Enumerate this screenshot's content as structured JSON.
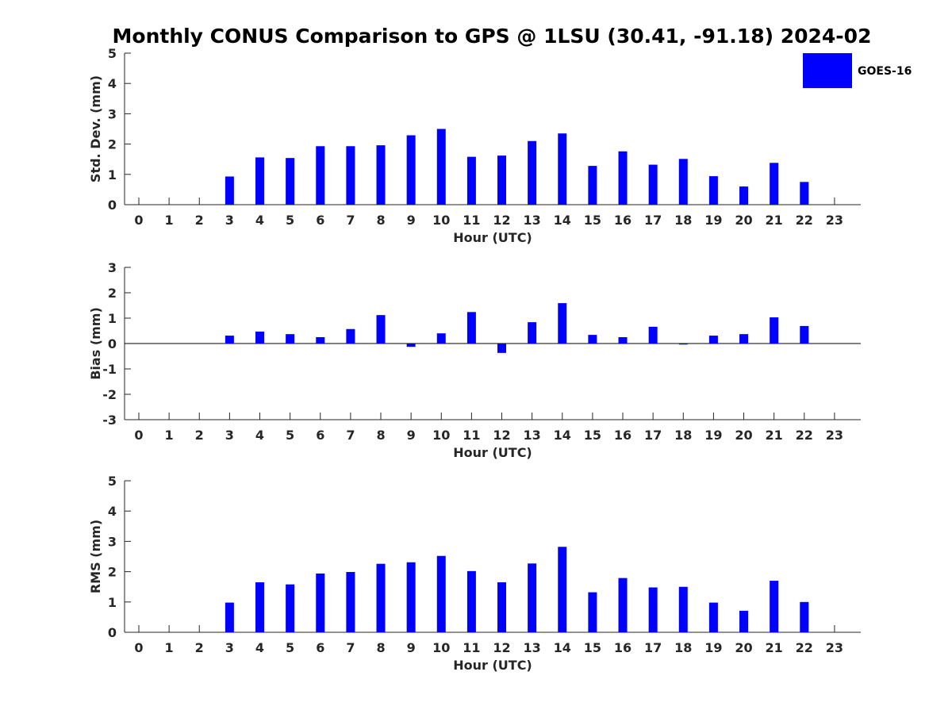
{
  "chart_data": {
    "title": "Monthly CONUS Comparison to GPS @ 1LSU (30.41, -91.18) 2024-02",
    "type": "bar",
    "legend": {
      "entries": [
        "GOES-16"
      ],
      "placement": "top-right outside"
    },
    "colors": {
      "bar": "#0000ff",
      "axis": "#262626",
      "title": "#000000"
    },
    "panels": [
      {
        "id": "std",
        "ylabel": "Std. Dev. (mm)",
        "xlabel": "Hour (UTC)",
        "ylim": [
          0,
          5
        ],
        "yticks": [
          0,
          1,
          2,
          3,
          4,
          5
        ],
        "zero_line": false,
        "categories": [
          0,
          1,
          2,
          3,
          4,
          5,
          6,
          7,
          8,
          9,
          10,
          11,
          12,
          13,
          14,
          15,
          16,
          17,
          18,
          19,
          20,
          21,
          22,
          23
        ],
        "series": [
          {
            "name": "GOES-16",
            "values": [
              null,
              null,
              null,
              0.93,
              1.56,
              1.54,
              1.93,
              1.93,
              1.96,
              2.29,
              2.5,
              1.58,
              1.62,
              2.1,
              2.35,
              1.28,
              1.76,
              1.32,
              1.51,
              0.94,
              0.6,
              1.38,
              0.75,
              null
            ]
          }
        ]
      },
      {
        "id": "bias",
        "ylabel": "Bias (mm)",
        "xlabel": "Hour (UTC)",
        "ylim": [
          -3,
          3
        ],
        "yticks": [
          -3,
          -2,
          -1,
          0,
          1,
          2,
          3
        ],
        "zero_line": true,
        "categories": [
          0,
          1,
          2,
          3,
          4,
          5,
          6,
          7,
          8,
          9,
          10,
          11,
          12,
          13,
          14,
          15,
          16,
          17,
          18,
          19,
          20,
          21,
          22,
          23
        ],
        "series": [
          {
            "name": "GOES-16",
            "values": [
              null,
              null,
              null,
              0.31,
              0.47,
              0.37,
              0.25,
              0.57,
              1.12,
              -0.13,
              0.4,
              1.24,
              -0.37,
              0.84,
              1.59,
              0.34,
              0.25,
              0.66,
              -0.04,
              0.31,
              0.37,
              1.03,
              0.69,
              null
            ]
          }
        ]
      },
      {
        "id": "rms",
        "ylabel": "RMS (mm)",
        "xlabel": "Hour (UTC)",
        "ylim": [
          0,
          5
        ],
        "yticks": [
          0,
          1,
          2,
          3,
          4,
          5
        ],
        "zero_line": false,
        "categories": [
          0,
          1,
          2,
          3,
          4,
          5,
          6,
          7,
          8,
          9,
          10,
          11,
          12,
          13,
          14,
          15,
          16,
          17,
          18,
          19,
          20,
          21,
          22,
          23
        ],
        "series": [
          {
            "name": "GOES-16",
            "values": [
              null,
              null,
              null,
              0.98,
              1.65,
              1.58,
              1.94,
              1.99,
              2.26,
              2.31,
              2.52,
              2.02,
              1.65,
              2.27,
              2.82,
              1.32,
              1.79,
              1.48,
              1.5,
              0.98,
              0.71,
              1.7,
              1.0,
              null
            ]
          }
        ]
      }
    ]
  }
}
